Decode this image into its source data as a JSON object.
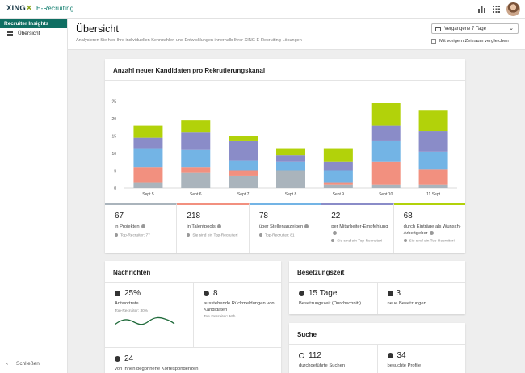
{
  "app": {
    "brand": "XING",
    "product": "E-Recruiting"
  },
  "sidebar": {
    "header": "Recruiter Insights",
    "items": [
      {
        "label": "Übersicht"
      }
    ],
    "close_label": "Schließen"
  },
  "page": {
    "title": "Übersicht",
    "subtitle": "Analysieren Sie hier Ihre individuellen Kennzahlen und Entwicklungen innerhalb Ihrer XING E-Recruiting-Lösungen",
    "range_value": "Vergangene 7 Tage",
    "compare_label": "Mit vorigem Zeitraum vergleichen"
  },
  "chart_card": {
    "title": "Anzahl neuer Kandidaten pro Rekrutierungskanal"
  },
  "chart_data": {
    "type": "bar",
    "stacked": true,
    "title": "Anzahl neuer Kandidaten pro Rekrutierungskanal",
    "categories": [
      "Sept 5",
      "Sept 6",
      "Sept 7",
      "Sept 8",
      "Sept 9",
      "Sept 10",
      "11 Sept"
    ],
    "ylim": [
      0,
      30
    ],
    "yticks": [
      0,
      5,
      10,
      15,
      20,
      25
    ],
    "grid": false,
    "series": [
      {
        "color": "#aab4bc",
        "values": [
          1.5,
          4.5,
          3.5,
          5,
          1,
          1,
          1
        ]
      },
      {
        "color": "#f2907f",
        "values": [
          4.5,
          1.5,
          1.5,
          0,
          0.5,
          6.5,
          4.5
        ]
      },
      {
        "color": "#73b4e5",
        "values": [
          5.5,
          5,
          3,
          2.5,
          3.5,
          6,
          5
        ]
      },
      {
        "color": "#8a8cc8",
        "values": [
          3,
          5,
          5.5,
          2,
          2.5,
          4.5,
          6
        ]
      },
      {
        "color": "#b2d20a",
        "values": [
          3.5,
          3.5,
          1.5,
          2,
          4,
          6.5,
          6
        ]
      }
    ]
  },
  "stats": [
    {
      "value": "67",
      "label": "in Projekten",
      "note": "Top-Recruiter: 77",
      "color": "#aab4bc"
    },
    {
      "value": "218",
      "label": "in Talentpools",
      "note": "Sie sind ein Top-Recruiter!",
      "color": "#f2907f"
    },
    {
      "value": "78",
      "label": "über Stellenanzeigen",
      "note": "Top-Recruiter: 81",
      "color": "#73b4e5"
    },
    {
      "value": "22",
      "label": "per Mitarbeiter-Empfehlung",
      "note": "Sie sind ein Top-Recruiter!",
      "color": "#8a8cc8"
    },
    {
      "value": "68",
      "label": "durch Einträge als Wunsch-Arbeitgeber",
      "note": "Sie sind ein Top-Recruiter!",
      "color": "#b2d20a"
    }
  ],
  "news_card": {
    "title": "Nachrichten",
    "response_rate": {
      "value": "25%",
      "label": "Antwortrate",
      "note": "Top-Recruiter: 30%"
    },
    "pending": {
      "value": "8",
      "label": "ausstehende Rückmeldungen von Kandidaten",
      "note": "Top-Recruiter: 10h"
    },
    "conversations": {
      "value": "24",
      "label": "von Ihnen begonnene Korrespondenzen"
    }
  },
  "besetzung_card": {
    "title": "Besetzungszeit",
    "duration": {
      "value": "15 Tage",
      "label": "Besetzungszeit (Durchschnitt)"
    },
    "new": {
      "value": "3",
      "label": "neue Besetzungen"
    }
  },
  "suche_card": {
    "title": "Suche",
    "searches": {
      "value": "112",
      "label": "durchgeführte Suchen"
    },
    "profiles": {
      "value": "34",
      "label": "besuchte Profile"
    }
  },
  "icons": {
    "chart": "bar-chart-icon",
    "apps": "apps-grid-icon",
    "calendar": "calendar-icon"
  }
}
